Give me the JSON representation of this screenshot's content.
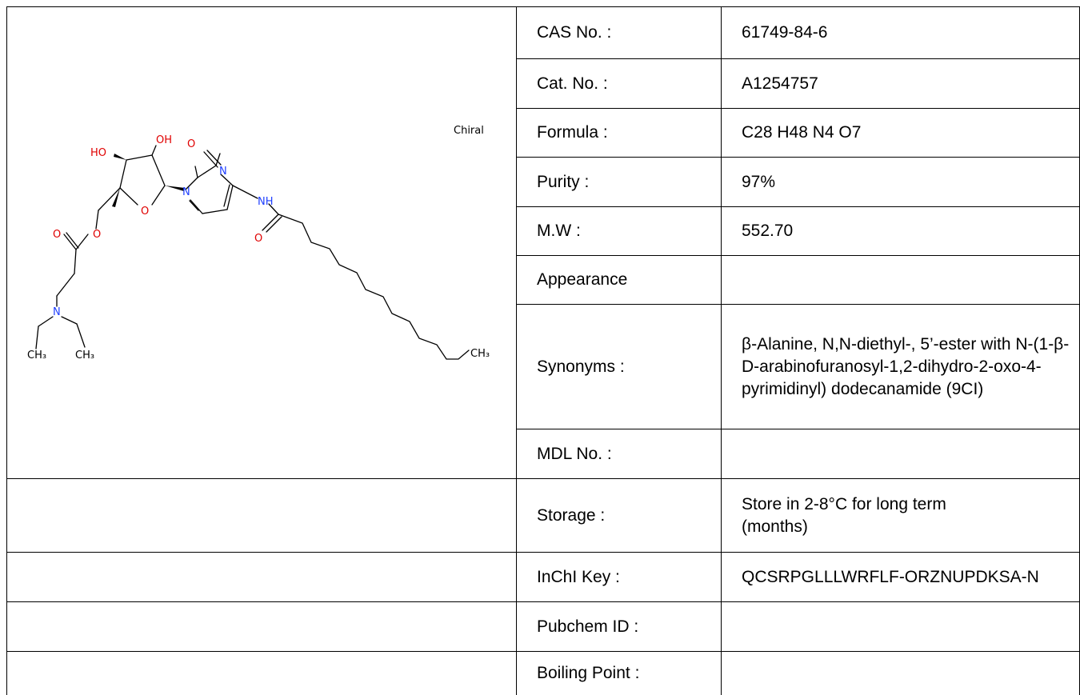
{
  "structure": {
    "chiral_label": "Chiral",
    "atoms": {
      "HO": "HO",
      "OH": "OH",
      "O": "O",
      "N": "N",
      "NH": "NH",
      "CH3": "CH₃"
    }
  },
  "properties": [
    {
      "label": "CAS No. :",
      "value": "61749-84-6"
    },
    {
      "label": "Cat. No. :",
      "value": "A1254757"
    },
    {
      "label": "Formula :",
      "value": "C28 H48 N4 O7"
    },
    {
      "label": "Purity :",
      "value": "97%"
    },
    {
      "label": "M.W :",
      "value": "552.70"
    },
    {
      "label": "Appearance",
      "value": ""
    },
    {
      "label": "Synonyms :",
      "value": "β-Alanine, N,N-diethyl-, 5’-ester with N-(1-β-D-arabinofuranosyl-1,2-dihydro-2-oxo-4-pyrimidinyl) dodecanamide (9CI)"
    },
    {
      "label": "MDL No. :",
      "value": ""
    },
    {
      "label": "Storage :",
      "value": "Store in 2-8°C for long term (months)"
    },
    {
      "label": "InChI Key :",
      "value": "QCSRPGLLLWRFLF-ORZNUPDKSA-N"
    },
    {
      "label": "Pubchem ID :",
      "value": ""
    },
    {
      "label": "Boiling Point :",
      "value": ""
    }
  ]
}
